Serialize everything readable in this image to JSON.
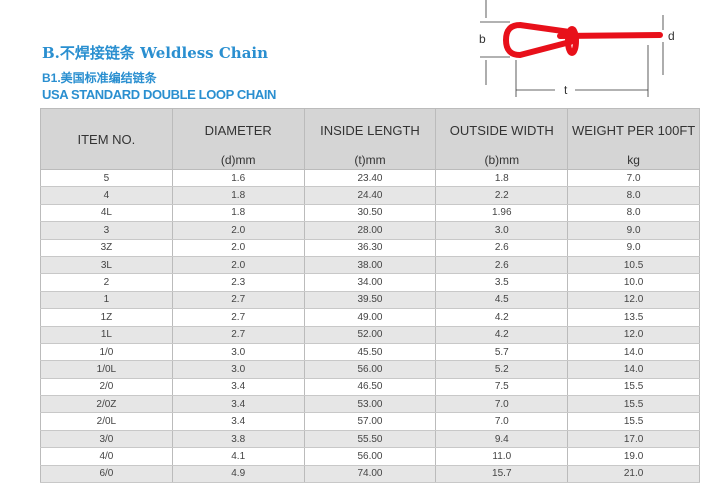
{
  "title_cn": "B.不焊接链条",
  "title_en": "Weldless Chain",
  "subtitle_cn": "B1.美国标准编结链条",
  "subtitle_en": "USA STANDARD DOUBLE  LOOP CHAIN",
  "diagram": {
    "label_b": "b",
    "label_d": "d",
    "label_t": "t",
    "chain_color": "#e8101a"
  },
  "headers": [
    {
      "label": "ITEM NO.",
      "unit": ""
    },
    {
      "label": "DIAMETER",
      "unit": "(d)mm"
    },
    {
      "label": "INSIDE LENGTH",
      "unit": "(t)mm"
    },
    {
      "label": "OUTSIDE WIDTH",
      "unit": "(b)mm"
    },
    {
      "label": "WEIGHT PER 100FT",
      "unit": "kg"
    }
  ],
  "rows": [
    [
      "5",
      "1.6",
      "23.40",
      "1.8",
      "7.0"
    ],
    [
      "4",
      "1.8",
      "24.40",
      "2.2",
      "8.0"
    ],
    [
      "4L",
      "1.8",
      "30.50",
      "1.96",
      "8.0"
    ],
    [
      "3",
      "2.0",
      "28.00",
      "3.0",
      "9.0"
    ],
    [
      "3Z",
      "2.0",
      "36.30",
      "2.6",
      "9.0"
    ],
    [
      "3L",
      "2.0",
      "38.00",
      "2.6",
      "10.5"
    ],
    [
      "2",
      "2.3",
      "34.00",
      "3.5",
      "10.0"
    ],
    [
      "1",
      "2.7",
      "39.50",
      "4.5",
      "12.0"
    ],
    [
      "1Z",
      "2.7",
      "49.00",
      "4.2",
      "13.5"
    ],
    [
      "1L",
      "2.7",
      "52.00",
      "4.2",
      "12.0"
    ],
    [
      "1/0",
      "3.0",
      "45.50",
      "5.7",
      "14.0"
    ],
    [
      "1/0L",
      "3.0",
      "56.00",
      "5.2",
      "14.0"
    ],
    [
      "2/0",
      "3.4",
      "46.50",
      "7.5",
      "15.5"
    ],
    [
      "2/0Z",
      "3.4",
      "53.00",
      "7.0",
      "15.5"
    ],
    [
      "2/0L",
      "3.4",
      "57.00",
      "7.0",
      "15.5"
    ],
    [
      "3/0",
      "3.8",
      "55.50",
      "9.4",
      "17.0"
    ],
    [
      "4/0",
      "4.1",
      "56.00",
      "11.0",
      "19.0"
    ],
    [
      "6/0",
      "4.9",
      "74.00",
      "15.7",
      "21.0"
    ]
  ]
}
